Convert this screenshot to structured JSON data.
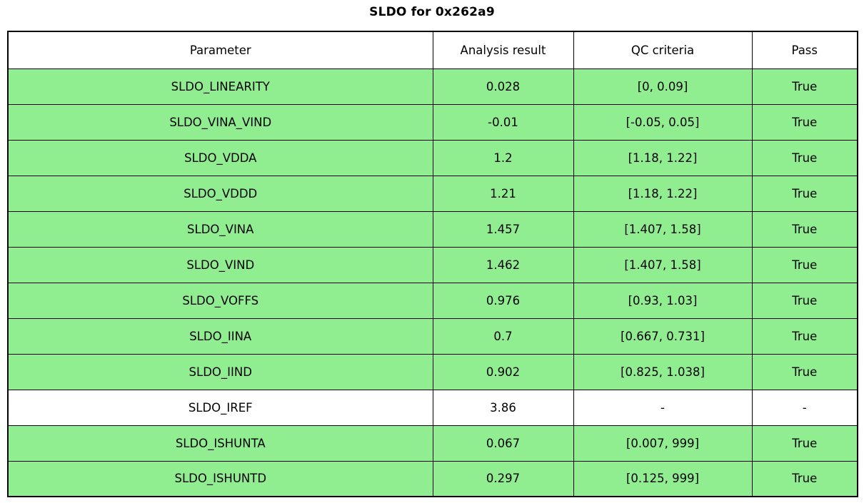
{
  "title": "SLDO for 0x262a9",
  "colors": {
    "pass_row_green": "#90ee90",
    "neutral_row_white": "#ffffff",
    "border": "#000000",
    "text": "#000000"
  },
  "table": {
    "columns": [
      "Parameter",
      "Analysis result",
      "QC criteria",
      "Pass"
    ],
    "rows": [
      {
        "parameter": "SLDO_LINEARITY",
        "result": "0.028",
        "criteria": "[0, 0.09]",
        "pass": "True",
        "row_color": "#90ee90"
      },
      {
        "parameter": "SLDO_VINA_VIND",
        "result": "-0.01",
        "criteria": "[-0.05, 0.05]",
        "pass": "True",
        "row_color": "#90ee90"
      },
      {
        "parameter": "SLDO_VDDA",
        "result": "1.2",
        "criteria": "[1.18, 1.22]",
        "pass": "True",
        "row_color": "#90ee90"
      },
      {
        "parameter": "SLDO_VDDD",
        "result": "1.21",
        "criteria": "[1.18, 1.22]",
        "pass": "True",
        "row_color": "#90ee90"
      },
      {
        "parameter": "SLDO_VINA",
        "result": "1.457",
        "criteria": "[1.407, 1.58]",
        "pass": "True",
        "row_color": "#90ee90"
      },
      {
        "parameter": "SLDO_VIND",
        "result": "1.462",
        "criteria": "[1.407, 1.58]",
        "pass": "True",
        "row_color": "#90ee90"
      },
      {
        "parameter": "SLDO_VOFFS",
        "result": "0.976",
        "criteria": "[0.93, 1.03]",
        "pass": "True",
        "row_color": "#90ee90"
      },
      {
        "parameter": "SLDO_IINA",
        "result": "0.7",
        "criteria": "[0.667, 0.731]",
        "pass": "True",
        "row_color": "#90ee90"
      },
      {
        "parameter": "SLDO_IIND",
        "result": "0.902",
        "criteria": "[0.825, 1.038]",
        "pass": "True",
        "row_color": "#90ee90"
      },
      {
        "parameter": "SLDO_IREF",
        "result": "3.86",
        "criteria": "-",
        "pass": "-",
        "row_color": "#ffffff"
      },
      {
        "parameter": "SLDO_ISHUNTA",
        "result": "0.067",
        "criteria": "[0.007, 999]",
        "pass": "True",
        "row_color": "#90ee90"
      },
      {
        "parameter": "SLDO_ISHUNTD",
        "result": "0.297",
        "criteria": "[0.125, 999]",
        "pass": "True",
        "row_color": "#90ee90"
      }
    ]
  },
  "chart_data": {
    "type": "table",
    "title": "SLDO for 0x262a9",
    "columns": [
      "Parameter",
      "Analysis result",
      "QC criteria",
      "Pass"
    ],
    "rows": [
      [
        "SLDO_LINEARITY",
        0.028,
        "[0, 0.09]",
        "True"
      ],
      [
        "SLDO_VINA_VIND",
        -0.01,
        "[-0.05, 0.05]",
        "True"
      ],
      [
        "SLDO_VDDA",
        1.2,
        "[1.18, 1.22]",
        "True"
      ],
      [
        "SLDO_VDDD",
        1.21,
        "[1.18, 1.22]",
        "True"
      ],
      [
        "SLDO_VINA",
        1.457,
        "[1.407, 1.58]",
        "True"
      ],
      [
        "SLDO_VIND",
        1.462,
        "[1.407, 1.58]",
        "True"
      ],
      [
        "SLDO_VOFFS",
        0.976,
        "[0.93, 1.03]",
        "True"
      ],
      [
        "SLDO_IINA",
        0.7,
        "[0.667, 0.731]",
        "True"
      ],
      [
        "SLDO_IIND",
        0.902,
        "[0.825, 1.038]",
        "True"
      ],
      [
        "SLDO_IREF",
        3.86,
        "-",
        "-"
      ],
      [
        "SLDO_ISHUNTA",
        0.067,
        "[0.007, 999]",
        "True"
      ],
      [
        "SLDO_ISHUNTD",
        0.297,
        "[0.125, 999]",
        "True"
      ]
    ],
    "layout_hints": {
      "highlight_color_passing_rows": "#90ee90",
      "neutral_row": "SLDO_IREF",
      "grid": true,
      "header_background": "#ffffff"
    }
  }
}
